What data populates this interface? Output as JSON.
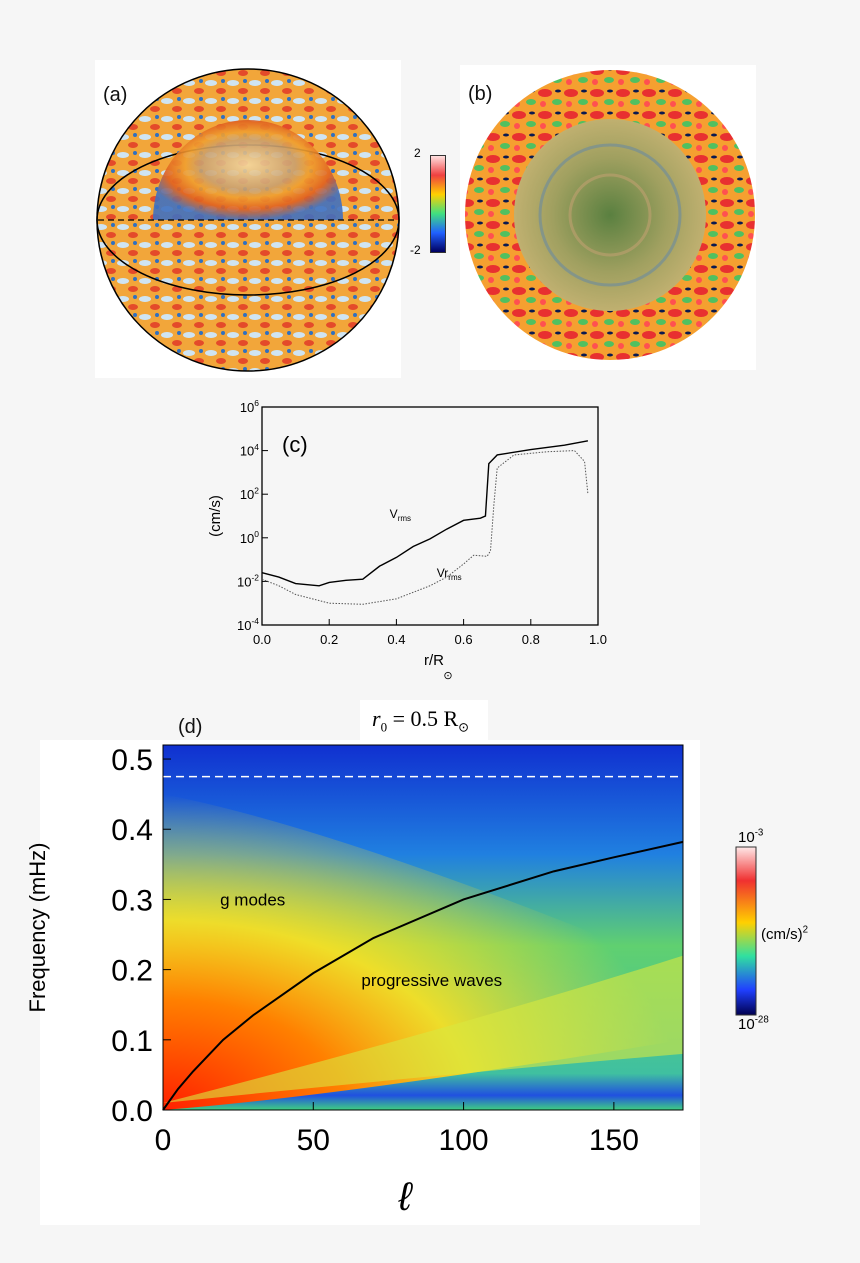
{
  "panel_a": {
    "label": "(a)",
    "colorbar": {
      "max": "2",
      "min": "-2"
    }
  },
  "panel_b": {
    "label": "(b)"
  },
  "chart_data": [
    {
      "type": "line",
      "panel_label": "(c)",
      "xlabel": "r/R",
      "xlabel_sub": "⊙",
      "ylabel": "(cm/s)",
      "xlim": [
        0,
        1
      ],
      "ylim_log10": [
        -4,
        6
      ],
      "xticks": [
        "0.0",
        "0.2",
        "0.4",
        "0.6",
        "0.8",
        "1.0"
      ],
      "yticks": [
        {
          "base": "10",
          "exp": "-4"
        },
        {
          "base": "10",
          "exp": "-2"
        },
        {
          "base": "10",
          "exp": "0"
        },
        {
          "base": "10",
          "exp": "2"
        },
        {
          "base": "10",
          "exp": "4"
        },
        {
          "base": "10",
          "exp": "6"
        }
      ],
      "series": [
        {
          "name": "V",
          "name_sub": "rms",
          "style": "solid",
          "x": [
            0,
            0.05,
            0.1,
            0.17,
            0.2,
            0.25,
            0.3,
            0.35,
            0.4,
            0.45,
            0.5,
            0.55,
            0.6,
            0.65,
            0.665,
            0.675,
            0.7,
            0.8,
            0.9,
            0.97
          ],
          "log10_y": [
            -1.6,
            -1.8,
            -2.1,
            -2.2,
            -2.05,
            -1.95,
            -1.9,
            -1.3,
            -0.9,
            -0.4,
            -0.05,
            0.4,
            0.8,
            0.9,
            1.0,
            3.4,
            3.8,
            4.05,
            4.25,
            4.45
          ]
        },
        {
          "name": "Vr",
          "name_sub": "rms",
          "style": "dotted",
          "x": [
            0,
            0.05,
            0.1,
            0.15,
            0.2,
            0.3,
            0.4,
            0.5,
            0.55,
            0.6,
            0.63,
            0.67,
            0.68,
            0.69,
            0.7,
            0.75,
            0.85,
            0.93,
            0.96,
            0.97
          ],
          "log10_y": [
            -1.9,
            -2.2,
            -2.6,
            -2.8,
            -3.0,
            -3.05,
            -2.8,
            -2.2,
            -1.8,
            -1.2,
            -0.8,
            -0.85,
            -0.6,
            1.5,
            3.2,
            3.8,
            3.95,
            4.0,
            3.5,
            2.0
          ]
        }
      ]
    },
    {
      "type": "heatmap",
      "panel_label": "(d)",
      "title": "r",
      "title_sub": "0",
      "title_rest": " = 0.5 R",
      "title_sun": "⊙",
      "xlabel": "ℓ",
      "ylabel": "Frequency (mHz)",
      "xlim": [
        0,
        173
      ],
      "ylim": [
        0,
        0.52
      ],
      "xticks": [
        "0",
        "50",
        "100",
        "150"
      ],
      "yticks": [
        "0.0",
        "0.1",
        "0.2",
        "0.3",
        "0.4",
        "0.5"
      ],
      "dashed_line_y": 0.475,
      "annotations": [
        "g modes",
        "progressive waves"
      ],
      "curve": {
        "l": [
          0,
          5,
          10,
          20,
          30,
          50,
          70,
          100,
          130,
          150,
          173
        ],
        "f": [
          0,
          0.03,
          0.055,
          0.1,
          0.135,
          0.195,
          0.245,
          0.3,
          0.34,
          0.36,
          0.382
        ]
      },
      "colorbar": {
        "max_base": "10",
        "max_exp": "-3",
        "min_base": "10",
        "min_exp": "-28",
        "unit": "(cm/s)",
        "unit_exp": "2"
      }
    }
  ]
}
